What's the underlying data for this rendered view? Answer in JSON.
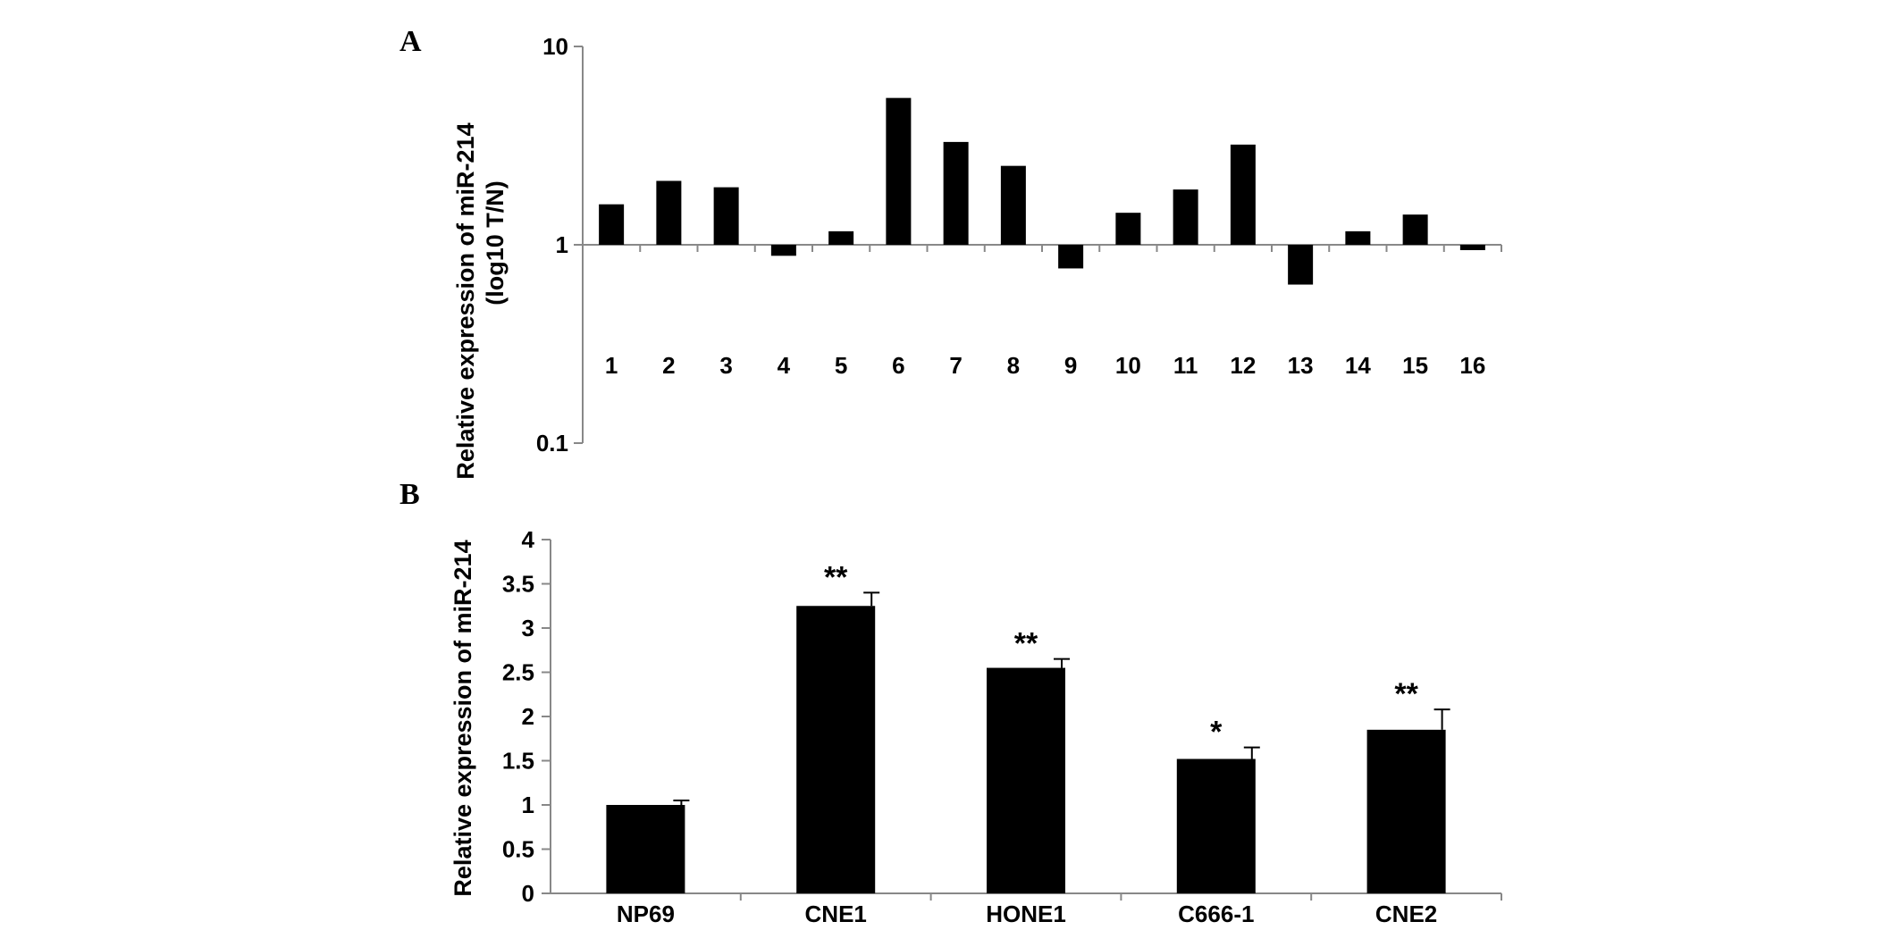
{
  "chart_data": [
    {
      "panel": "A",
      "type": "bar",
      "ylabel_line1": "Relative expression of miR-214",
      "ylabel_line2": "(log10 T/N)",
      "yscale": "log",
      "ylim": [
        0.1,
        10
      ],
      "yticks": [
        {
          "value": 10,
          "label": "10"
        },
        {
          "value": 1,
          "label": "1"
        },
        {
          "value": 0.1,
          "label": "0.1"
        }
      ],
      "baseline": 1,
      "categories": [
        "1",
        "2",
        "3",
        "4",
        "5",
        "6",
        "7",
        "8",
        "9",
        "10",
        "11",
        "12",
        "13",
        "14",
        "15",
        "16"
      ],
      "values": [
        1.6,
        2.1,
        1.95,
        0.88,
        1.17,
        5.5,
        3.3,
        2.5,
        0.76,
        1.45,
        1.9,
        3.2,
        0.63,
        1.17,
        1.42,
        0.94
      ],
      "grid": false
    },
    {
      "panel": "B",
      "type": "bar",
      "ylabel": "Relative expression of miR-214",
      "ylim": [
        0,
        4
      ],
      "yticks": [
        {
          "value": 0,
          "label": "0"
        },
        {
          "value": 0.5,
          "label": "0.5"
        },
        {
          "value": 1,
          "label": "1"
        },
        {
          "value": 1.5,
          "label": "1.5"
        },
        {
          "value": 2,
          "label": "2"
        },
        {
          "value": 2.5,
          "label": "2.5"
        },
        {
          "value": 3,
          "label": "3"
        },
        {
          "value": 3.5,
          "label": "3.5"
        },
        {
          "value": 4,
          "label": "4"
        }
      ],
      "categories": [
        "NP69",
        "CNE1",
        "HONE1",
        "C666-1",
        "CNE2"
      ],
      "values": [
        1.0,
        3.25,
        2.55,
        1.52,
        1.85
      ],
      "errors": [
        0.05,
        0.15,
        0.1,
        0.13,
        0.23
      ],
      "significance": [
        "",
        "**",
        "**",
        "*",
        "**"
      ],
      "grid": false
    }
  ]
}
